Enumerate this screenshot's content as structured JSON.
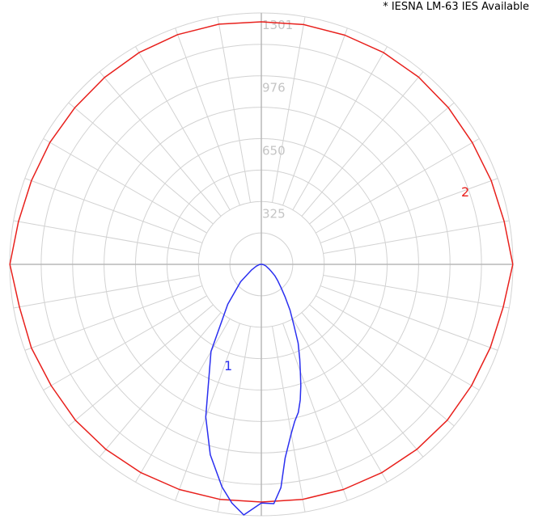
{
  "note": "* IESNA LM-63 IES Available",
  "chart_data": {
    "type": "polar",
    "r_ticks": [
      325,
      650,
      976,
      1301
    ],
    "r_max": 1301,
    "angle_step_deg": 10,
    "grid": true,
    "series": [
      {
        "label": "2",
        "color": "#e8201c",
        "angles_deg": [
          0,
          10,
          20,
          30,
          40,
          50,
          60,
          70,
          80,
          90,
          100,
          110,
          120,
          130,
          140,
          150,
          160,
          170,
          180,
          190,
          200,
          210,
          220,
          230,
          240,
          250,
          260,
          270,
          280,
          290,
          300,
          310,
          320,
          330,
          340,
          350
        ],
        "values": [
          1230,
          1235,
          1240,
          1245,
          1250,
          1255,
          1255,
          1260,
          1270,
          1300,
          1275,
          1265,
          1260,
          1262,
          1265,
          1265,
          1262,
          1260,
          1255,
          1262,
          1265,
          1265,
          1262,
          1260,
          1262,
          1265,
          1275,
          1300,
          1270,
          1265,
          1255,
          1255,
          1250,
          1245,
          1240,
          1235
        ]
      },
      {
        "label": "1",
        "color": "#2a2ff0",
        "angles_deg": [
          0,
          3,
          5,
          7,
          10,
          12,
          14,
          16,
          18,
          20,
          22,
          25,
          28,
          32,
          36,
          40,
          45,
          50,
          55,
          60,
          70,
          80,
          90,
          270,
          280,
          290,
          300,
          310,
          320,
          330,
          340,
          345,
          350,
          353,
          356
        ],
        "values": [
          1235,
          1240,
          1160,
          1010,
          890,
          830,
          790,
          730,
          660,
          590,
          530,
          450,
          360,
          280,
          210,
          160,
          120,
          90,
          62,
          45,
          25,
          12,
          4,
          5,
          12,
          28,
          60,
          140,
          270,
          520,
          840,
          1020,
          1170,
          1245,
          1300
        ]
      }
    ]
  }
}
